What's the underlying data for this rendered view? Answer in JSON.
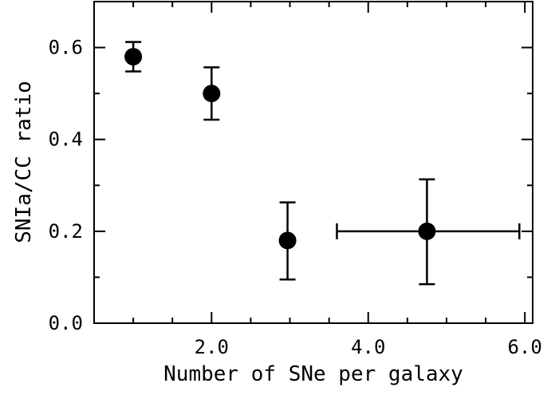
{
  "chart_data": {
    "type": "scatter",
    "title": "",
    "xlabel": "Number of SNe per galaxy",
    "ylabel": "SNIa/CC ratio",
    "xlim": [
      0.5,
      6.1
    ],
    "ylim": [
      0.0,
      0.7
    ],
    "x_ticks": [
      2.0,
      4.0,
      6.0
    ],
    "x_tick_labels": [
      "2.0",
      "4.0",
      "6.0"
    ],
    "y_ticks": [
      0.0,
      0.2,
      0.4,
      0.6
    ],
    "y_tick_labels": [
      "0.0",
      "0.2",
      "0.4",
      "0.6"
    ],
    "grid": false,
    "points": [
      {
        "x": 1.0,
        "y": 0.58,
        "y_lo": 0.548,
        "y_hi": 0.612
      },
      {
        "x": 2.0,
        "y": 0.5,
        "y_lo": 0.443,
        "y_hi": 0.557
      },
      {
        "x": 2.97,
        "y": 0.18,
        "y_lo": 0.095,
        "y_hi": 0.263
      },
      {
        "x": 4.75,
        "y": 0.2,
        "y_lo": 0.085,
        "y_hi": 0.313,
        "x_lo": 3.6,
        "x_hi": 5.93
      }
    ]
  }
}
